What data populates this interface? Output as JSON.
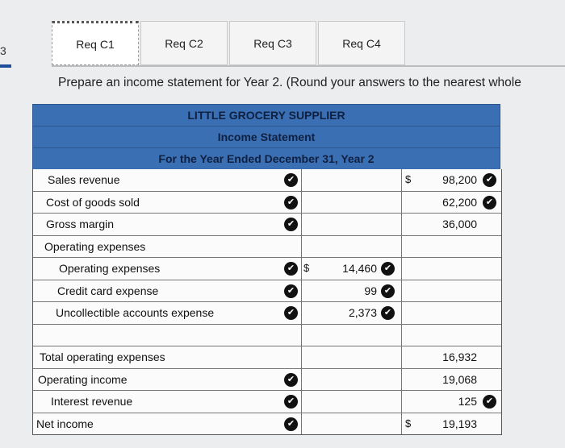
{
  "step": {
    "number": "3"
  },
  "tabs": [
    {
      "label": "Req C1"
    },
    {
      "label": "Req C2"
    },
    {
      "label": "Req C3"
    },
    {
      "label": "Req C4"
    }
  ],
  "instruction": "Prepare an income statement for Year 2. (Round your answers to the nearest whole",
  "statement": {
    "company": "LITTLE GROCERY SUPPLIER",
    "title": "Income Statement",
    "period": "For the Year Ended December 31, Year 2",
    "rows": [
      {
        "label": "Sales revenue",
        "amount_dollar": "$",
        "amount": "98,200"
      },
      {
        "label": "Cost of goods sold",
        "amount": "62,200"
      },
      {
        "label": "Gross margin",
        "amount": "36,000"
      },
      {
        "label": "Operating expenses"
      },
      {
        "label": "Operating expenses",
        "detail_dollar": "$",
        "detail": "14,460"
      },
      {
        "label": "Credit card expense",
        "detail": "99"
      },
      {
        "label": "Uncollectible accounts expense",
        "detail": "2,373"
      },
      {
        "label": ""
      },
      {
        "label": "Total operating expenses",
        "amount": "16,932"
      },
      {
        "label": "Operating income",
        "amount": "19,068"
      },
      {
        "label": "Interest revenue",
        "amount": "125"
      },
      {
        "label": "Net income",
        "amount_dollar": "$",
        "amount": "19,193"
      }
    ]
  },
  "icons": {
    "correct": "check-circle-icon",
    "correct_color": "#111111"
  }
}
